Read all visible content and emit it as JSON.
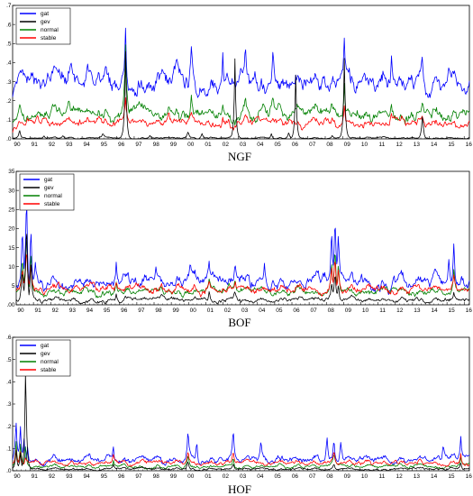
{
  "figure": {
    "x_ticks": [
      "90",
      "91",
      "92",
      "93",
      "94",
      "95",
      "96",
      "97",
      "98",
      "99",
      "00",
      "01",
      "02",
      "03",
      "04",
      "05",
      "06",
      "07",
      "08",
      "09",
      "10",
      "11",
      "12",
      "13",
      "14",
      "15",
      "16"
    ],
    "series_colors": {
      "gat": "#0000ff",
      "gev": "#000000",
      "normal": "#008000",
      "stable": "#ff0000"
    }
  },
  "chart_data": [
    {
      "type": "line",
      "title": "NGF",
      "xlim": [
        1990.0,
        2016.3
      ],
      "ylim": [
        0,
        0.7
      ],
      "yticks": [
        0,
        0.1,
        0.2,
        0.3,
        0.4,
        0.5,
        0.6,
        0.7
      ],
      "ytick_labels": [
        ".0",
        ".1",
        ".2",
        ".3",
        ".4",
        ".5",
        ".6",
        ".7"
      ],
      "grid": false,
      "legend": "top-left",
      "series": [
        {
          "name": "gat",
          "color": "#0000ff",
          "base": 0.3,
          "amp": 0.04,
          "peaks": [
            [
              1990.4,
              0.33
            ],
            [
              1990.85,
              0.31
            ],
            [
              1992.1,
              0.34
            ],
            [
              1996.5,
              0.62
            ],
            [
              2000.3,
              0.53
            ],
            [
              2002.1,
              0.52
            ],
            [
              2003.4,
              0.5
            ],
            [
              2005.0,
              0.47
            ],
            [
              2009.1,
              0.56
            ],
            [
              2011.8,
              0.48
            ],
            [
              2013.6,
              0.47
            ],
            [
              2015.1,
              0.38
            ]
          ],
          "lo": [
            [
              1990.0,
              0.22
            ]
          ]
        },
        {
          "name": "gev",
          "color": "#000000",
          "base": 0.004,
          "amp": 0.003,
          "peaks": [
            [
              1990.4,
              0.05
            ],
            [
              1991.8,
              0.02
            ],
            [
              1992.9,
              0.02
            ],
            [
              1995.2,
              0.03
            ],
            [
              1996.5,
              0.48
            ],
            [
              1997.9,
              0.02
            ],
            [
              2000.1,
              0.04
            ],
            [
              2000.9,
              0.03
            ],
            [
              2002.8,
              0.42
            ],
            [
              2004.9,
              0.03
            ],
            [
              2005.9,
              0.04
            ],
            [
              2006.3,
              0.34
            ],
            [
              2008.4,
              0.02
            ],
            [
              2009.0,
              0.04
            ],
            [
              2009.1,
              0.44
            ],
            [
              2013.6,
              0.15
            ]
          ],
          "lo": []
        },
        {
          "name": "normal",
          "color": "#008000",
          "base": 0.135,
          "amp": 0.025,
          "peaks": [
            [
              1990.4,
              0.18
            ],
            [
              1990.85,
              0.17
            ],
            [
              1993.2,
              0.18
            ],
            [
              1996.5,
              0.45
            ],
            [
              1999.0,
              0.19
            ],
            [
              2000.3,
              0.25
            ],
            [
              2002.1,
              0.22
            ],
            [
              2003.4,
              0.22
            ],
            [
              2005.0,
              0.21
            ],
            [
              2009.1,
              0.34
            ],
            [
              2011.8,
              0.21
            ],
            [
              2013.6,
              0.22
            ]
          ],
          "lo": [
            [
              1990.0,
              0.08
            ],
            [
              1990.2,
              0.1
            ]
          ]
        },
        {
          "name": "stable",
          "color": "#ff0000",
          "base": 0.085,
          "amp": 0.018,
          "peaks": [
            [
              1990.4,
              0.09
            ],
            [
              1990.85,
              0.1
            ],
            [
              1993.2,
              0.11
            ],
            [
              1996.5,
              0.2
            ],
            [
              1999.0,
              0.12
            ],
            [
              2000.3,
              0.14
            ],
            [
              2002.1,
              0.14
            ],
            [
              2003.4,
              0.13
            ],
            [
              2005.0,
              0.13
            ],
            [
              2009.1,
              0.2
            ],
            [
              2011.8,
              0.14
            ],
            [
              2013.6,
              0.14
            ]
          ],
          "lo": [
            [
              1990.0,
              0.03
            ],
            [
              1990.2,
              0.05
            ]
          ]
        }
      ]
    },
    {
      "type": "line",
      "title": "BOF",
      "xlim": [
        1990.0,
        2016.3
      ],
      "ylim": [
        0,
        35
      ],
      "yticks": [
        0,
        5,
        10,
        15,
        20,
        25,
        30,
        35
      ],
      "ytick_labels": [
        ".00",
        "5",
        "10",
        "15",
        "20",
        "25",
        "30",
        "35"
      ],
      "grid": false,
      "legend": "top-left",
      "series": [
        {
          "name": "gat",
          "color": "#0000ff",
          "base": 6.0,
          "amp": 1.3,
          "peaks": [
            [
              1990.35,
              22.0
            ],
            [
              1990.6,
              33.0
            ],
            [
              1990.85,
              24.0
            ],
            [
              1991.1,
              12.0
            ],
            [
              1995.8,
              12.5
            ],
            [
              1998.1,
              10.5
            ],
            [
              2000.1,
              11.0
            ],
            [
              2001.2,
              12.0
            ],
            [
              2002.7,
              12.5
            ],
            [
              2004.4,
              12.0
            ],
            [
              2008.3,
              20.0
            ],
            [
              2008.5,
              25.0
            ],
            [
              2008.7,
              20.0
            ],
            [
              2015.4,
              16.5
            ],
            [
              2015.1,
              13.0
            ]
          ],
          "lo": [
            [
              1991.6,
              3.5
            ],
            [
              1992.5,
              4.0
            ],
            [
              1993.0,
              4.0
            ],
            [
              1994.5,
              4.5
            ],
            [
              2014.0,
              4.5
            ]
          ]
        },
        {
          "name": "gev",
          "color": "#000000",
          "base": 1.4,
          "amp": 0.5,
          "peaks": [
            [
              1990.35,
              10.0
            ],
            [
              1990.6,
              24.5
            ],
            [
              1990.85,
              13.0
            ],
            [
              1995.8,
              3.5
            ],
            [
              2001.2,
              4.0
            ],
            [
              2002.7,
              4.0
            ],
            [
              2008.3,
              6.0
            ],
            [
              2008.5,
              9.0
            ],
            [
              2008.7,
              6.0
            ],
            [
              2015.4,
              3.0
            ]
          ],
          "lo": [
            [
              1991.5,
              0.2
            ]
          ]
        },
        {
          "name": "normal",
          "color": "#008000",
          "base": 3.6,
          "amp": 0.7,
          "peaks": [
            [
              1990.35,
              13.0
            ],
            [
              1990.6,
              21.0
            ],
            [
              1990.85,
              15.0
            ],
            [
              1995.8,
              7.0
            ],
            [
              2001.2,
              7.0
            ],
            [
              2002.7,
              7.5
            ],
            [
              2008.3,
              13.0
            ],
            [
              2008.5,
              16.5
            ],
            [
              2008.7,
              13.0
            ],
            [
              2015.4,
              9.0
            ]
          ],
          "lo": [
            [
              1991.6,
              2.0
            ]
          ]
        },
        {
          "name": "stable",
          "color": "#ff0000",
          "base": 4.2,
          "amp": 0.8,
          "peaks": [
            [
              1990.35,
              11.0
            ],
            [
              1990.6,
              16.0
            ],
            [
              1990.85,
              12.5
            ],
            [
              1995.8,
              6.5
            ],
            [
              2001.2,
              6.5
            ],
            [
              2002.7,
              7.0
            ],
            [
              2008.3,
              11.5
            ],
            [
              2008.5,
              14.0
            ],
            [
              2008.7,
              11.5
            ],
            [
              2015.4,
              8.0
            ]
          ],
          "lo": [
            [
              1991.6,
              2.5
            ]
          ]
        }
      ]
    },
    {
      "type": "line",
      "title": "HOF",
      "xlim": [
        1990.0,
        2016.3
      ],
      "ylim": [
        0,
        0.6
      ],
      "yticks": [
        0,
        0.1,
        0.2,
        0.3,
        0.4,
        0.5,
        0.6
      ],
      "ytick_labels": [
        ".0",
        ".1",
        ".2",
        ".3",
        ".4",
        ".5",
        ".6"
      ],
      "grid": false,
      "legend": "top-left",
      "series": [
        {
          "name": "gat",
          "color": "#0000ff",
          "base": 0.052,
          "amp": 0.012,
          "peaks": [
            [
              1990.2,
              0.23
            ],
            [
              1990.45,
              0.21
            ],
            [
              1990.65,
              0.18
            ],
            [
              1990.85,
              0.14
            ],
            [
              1995.8,
              0.12
            ],
            [
              2000.1,
              0.19
            ],
            [
              2000.6,
              0.16
            ],
            [
              2002.7,
              0.19
            ],
            [
              2004.3,
              0.14
            ],
            [
              2008.1,
              0.16
            ],
            [
              2008.5,
              0.17
            ],
            [
              2008.9,
              0.15
            ],
            [
              2014.8,
              0.13
            ],
            [
              2015.8,
              0.16
            ]
          ],
          "lo": [
            [
              1991.5,
              0.04
            ],
            [
              2014.0,
              0.04
            ]
          ]
        },
        {
          "name": "gev",
          "color": "#000000",
          "base": 0.008,
          "amp": 0.004,
          "peaks": [
            [
              1990.2,
              0.1
            ],
            [
              1990.45,
              0.08
            ],
            [
              1990.75,
              0.51
            ],
            [
              1995.8,
              0.03
            ],
            [
              2000.1,
              0.05
            ],
            [
              2002.7,
              0.04
            ],
            [
              2008.5,
              0.04
            ],
            [
              2015.8,
              0.04
            ]
          ],
          "lo": []
        },
        {
          "name": "normal",
          "color": "#008000",
          "base": 0.02,
          "amp": 0.006,
          "peaks": [
            [
              1990.2,
              0.14
            ],
            [
              1990.45,
              0.12
            ],
            [
              1990.75,
              0.13
            ],
            [
              1995.8,
              0.05
            ],
            [
              2000.1,
              0.08
            ],
            [
              2002.7,
              0.08
            ],
            [
              2008.5,
              0.07
            ],
            [
              2015.8,
              0.07
            ]
          ],
          "lo": []
        },
        {
          "name": "stable",
          "color": "#ff0000",
          "base": 0.035,
          "amp": 0.008,
          "peaks": [
            [
              1990.2,
              0.1
            ],
            [
              1990.45,
              0.09
            ],
            [
              1990.75,
              0.08
            ],
            [
              1995.8,
              0.07
            ],
            [
              2000.1,
              0.1
            ],
            [
              2002.7,
              0.1
            ],
            [
              2008.5,
              0.1
            ],
            [
              2015.8,
              0.09
            ]
          ],
          "lo": []
        }
      ]
    }
  ]
}
